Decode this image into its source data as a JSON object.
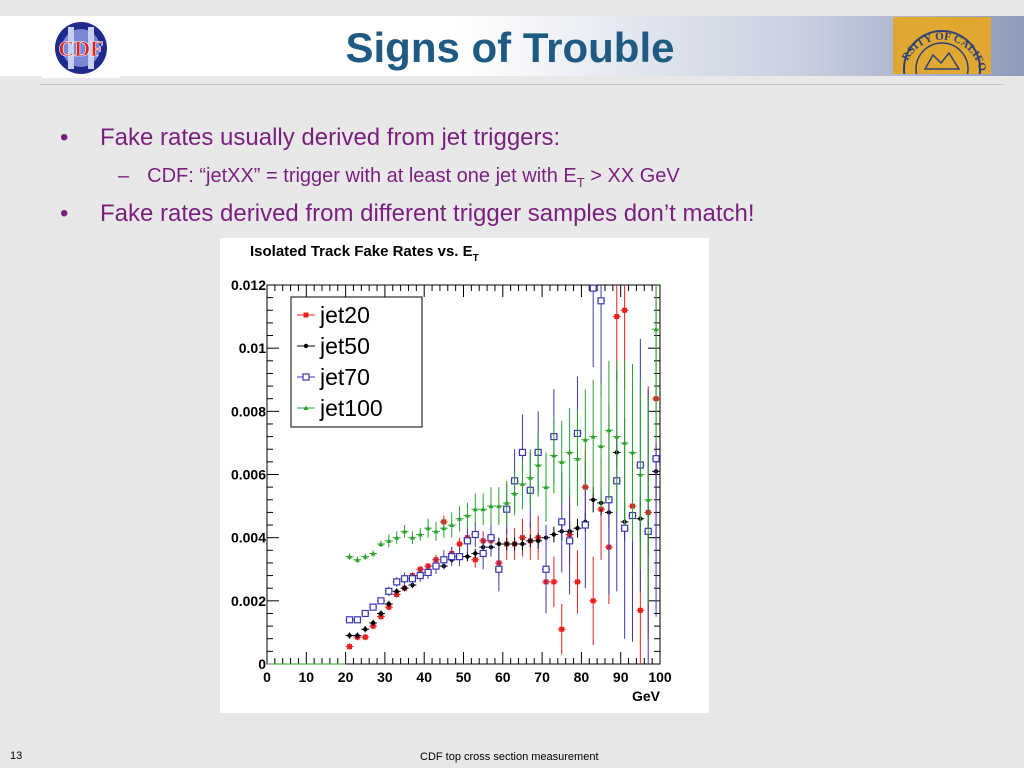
{
  "slide": {
    "title": "Signs of Trouble",
    "bullets": [
      {
        "text": "Fake rates usually derived from jet triggers:"
      },
      {
        "text": "Fake rates derived from different trigger samples don’t match!"
      }
    ],
    "sub_bullet": {
      "prefix": "CDF: “jetXX” = trigger with at least one jet with E",
      "sub": "T",
      "suffix": " > XX GeV"
    },
    "slide_number": "13",
    "footer": "CDF top cross section measurement",
    "logo_left_text": "CDF",
    "logo_right_text": "RSITY OF CALIFOR"
  },
  "chart_data": {
    "type": "scatter",
    "title": "Isolated Track Fake Rates vs. E",
    "title_sub": "T",
    "xlabel": "GeV",
    "xlim": [
      0,
      100
    ],
    "ylim": [
      0,
      0.012
    ],
    "xticks": [
      "0",
      "10",
      "20",
      "30",
      "40",
      "50",
      "60",
      "70",
      "80",
      "90",
      "100"
    ],
    "yticks": [
      "0",
      "0.002",
      "0.004",
      "0.006",
      "0.008",
      "0.01",
      "0.012"
    ],
    "legend_position": "top-left",
    "series": [
      {
        "name": "jet20",
        "color": "#e8211f",
        "marker": "square-filled",
        "x": [
          21,
          23,
          25,
          27,
          29,
          31,
          33,
          35,
          37,
          39,
          41,
          43,
          45,
          47,
          49,
          51,
          53,
          55,
          57,
          59,
          61,
          63,
          65,
          67,
          69,
          71,
          73,
          75,
          77,
          79,
          81,
          83,
          85,
          87,
          89,
          91,
          93,
          95,
          97,
          99
        ],
        "y": [
          0.00055,
          0.00085,
          0.00085,
          0.0012,
          0.0015,
          0.0018,
          0.0022,
          0.0024,
          0.0028,
          0.003,
          0.0031,
          0.0033,
          0.0045,
          0.0035,
          0.0038,
          0.004,
          0.0033,
          0.0039,
          0.0039,
          0.0032,
          0.0038,
          0.0038,
          0.004,
          0.0039,
          0.004,
          0.0026,
          0.0026,
          0.0011,
          0.0041,
          0.0026,
          0.0056,
          0.002,
          0.0049,
          0.0037,
          0.011,
          0.0112,
          0.005,
          0.0017,
          0.0048,
          0.0084
        ],
        "err": [
          0.0001,
          0.0001,
          0.0001,
          0.0001,
          0.0001,
          0.0001,
          0.0001,
          0.0001,
          0.0001,
          0.0001,
          0.0001,
          0.00015,
          0.0002,
          0.0002,
          0.0002,
          0.00025,
          0.00025,
          0.0003,
          0.0003,
          0.0004,
          0.0005,
          0.0005,
          0.0006,
          0.0006,
          0.0007,
          0.0007,
          0.0008,
          0.0008,
          0.0009,
          0.001,
          0.0012,
          0.0014,
          0.0016,
          0.0018,
          0.002,
          0.0025,
          0.003,
          0.0035,
          0.004,
          0.0045
        ]
      },
      {
        "name": "jet50",
        "color": "#000000",
        "marker": "dot",
        "x": [
          21,
          23,
          25,
          27,
          29,
          31,
          33,
          35,
          37,
          39,
          41,
          43,
          45,
          47,
          49,
          51,
          53,
          55,
          57,
          59,
          61,
          63,
          65,
          67,
          69,
          71,
          73,
          75,
          77,
          79,
          81,
          83,
          85,
          87,
          89,
          91,
          93,
          95,
          97,
          99
        ],
        "y": [
          0.0009,
          0.0009,
          0.0011,
          0.0013,
          0.0016,
          0.0019,
          0.0023,
          0.0024,
          0.0025,
          0.0028,
          0.0029,
          0.0031,
          0.0031,
          0.0033,
          0.0034,
          0.0034,
          0.0035,
          0.0037,
          0.0037,
          0.0038,
          0.0038,
          0.0038,
          0.0038,
          0.0039,
          0.0039,
          0.004,
          0.0041,
          0.0042,
          0.0042,
          0.0043,
          0.0045,
          0.0052,
          0.0051,
          0.0048,
          0.0067,
          0.0045,
          0.0047,
          0.0046,
          0.0042,
          0.0061
        ],
        "err": [
          0.0001,
          0.0001,
          0.0001,
          0.0001,
          0.0001,
          0.0001,
          0.0001,
          0.0001,
          0.0001,
          0.0001,
          0.0001,
          0.0001,
          0.0001,
          0.0001,
          0.0001,
          0.00015,
          0.00015,
          0.00015,
          0.0002,
          0.0002,
          0.0002,
          0.0002,
          0.0002,
          0.0002,
          0.00025,
          0.00025,
          0.00025,
          0.0003,
          0.0003,
          0.0003,
          0.0003,
          0.0004,
          0.0004,
          0.0005,
          0.0005,
          0.0006,
          0.0006,
          0.0007,
          0.0008,
          0.0008
        ]
      },
      {
        "name": "jet70",
        "color": "#3a39b0",
        "marker": "square-open",
        "x": [
          21,
          23,
          25,
          27,
          29,
          31,
          33,
          35,
          37,
          39,
          41,
          43,
          45,
          47,
          49,
          51,
          53,
          55,
          57,
          59,
          61,
          63,
          65,
          67,
          69,
          71,
          73,
          75,
          77,
          79,
          81,
          83,
          85,
          87,
          89,
          91,
          93,
          95,
          97,
          99
        ],
        "y": [
          0.0014,
          0.0014,
          0.0016,
          0.0018,
          0.002,
          0.0023,
          0.0026,
          0.0027,
          0.0027,
          0.0028,
          0.0029,
          0.0031,
          0.0033,
          0.0034,
          0.0034,
          0.0039,
          0.0041,
          0.0035,
          0.004,
          0.003,
          0.0049,
          0.0058,
          0.0067,
          0.0055,
          0.0067,
          0.003,
          0.0072,
          0.0045,
          0.0039,
          0.0073,
          0.0044,
          0.0119,
          0.0115,
          0.0052,
          0.0058,
          0.0043,
          0.0047,
          0.0063,
          0.0042,
          0.0065
        ],
        "err": [
          0.0001,
          0.0001,
          0.0001,
          0.0001,
          0.0001,
          0.00015,
          0.00015,
          0.0002,
          0.0002,
          0.0002,
          0.0002,
          0.00025,
          0.0003,
          0.0003,
          0.0003,
          0.0004,
          0.0004,
          0.0005,
          0.0006,
          0.0007,
          0.0008,
          0.001,
          0.0012,
          0.0012,
          0.0013,
          0.0014,
          0.0015,
          0.0016,
          0.0017,
          0.0018,
          0.002,
          0.0025,
          0.003,
          0.003,
          0.0035,
          0.0035,
          0.004,
          0.004,
          0.0045,
          0.005
        ]
      },
      {
        "name": "jet100",
        "color": "#2aa32a",
        "marker": "triangle",
        "x": [
          1,
          3,
          5,
          7,
          9,
          11,
          13,
          15,
          17,
          19,
          21,
          23,
          25,
          27,
          29,
          31,
          33,
          35,
          37,
          39,
          41,
          43,
          45,
          47,
          49,
          51,
          53,
          55,
          57,
          59,
          61,
          63,
          65,
          67,
          69,
          71,
          73,
          75,
          77,
          79,
          81,
          83,
          85,
          87,
          89,
          91,
          93,
          95,
          97,
          99
        ],
        "y": [
          0,
          0,
          0,
          0,
          0,
          0,
          0,
          0,
          0,
          0,
          0.0034,
          0.0033,
          0.0034,
          0.0035,
          0.0038,
          0.0039,
          0.004,
          0.0042,
          0.004,
          0.0041,
          0.0043,
          0.0042,
          0.0043,
          0.0044,
          0.0046,
          0.0047,
          0.0049,
          0.0049,
          0.005,
          0.005,
          0.0051,
          0.0054,
          0.0057,
          0.0059,
          0.0063,
          0.0056,
          0.0066,
          0.0064,
          0.0067,
          0.0065,
          0.0071,
          0.0072,
          0.0069,
          0.0074,
          0.0072,
          0.007,
          0.0067,
          0.006,
          0.0052,
          0.0106
        ],
        "err": [
          0,
          0,
          0,
          0,
          0,
          0,
          0,
          0,
          0,
          0,
          0.0001,
          0.0001,
          0.0001,
          0.0001,
          0.0001,
          0.0002,
          0.0002,
          0.0002,
          0.0002,
          0.0002,
          0.0003,
          0.0003,
          0.0003,
          0.0004,
          0.0004,
          0.0004,
          0.0005,
          0.0005,
          0.0006,
          0.0006,
          0.0007,
          0.0007,
          0.0008,
          0.0009,
          0.001,
          0.0011,
          0.0012,
          0.0013,
          0.0014,
          0.0015,
          0.0016,
          0.0018,
          0.002,
          0.0022,
          0.0024,
          0.0026,
          0.0028,
          0.003,
          0.0033,
          0.0036
        ]
      }
    ]
  }
}
